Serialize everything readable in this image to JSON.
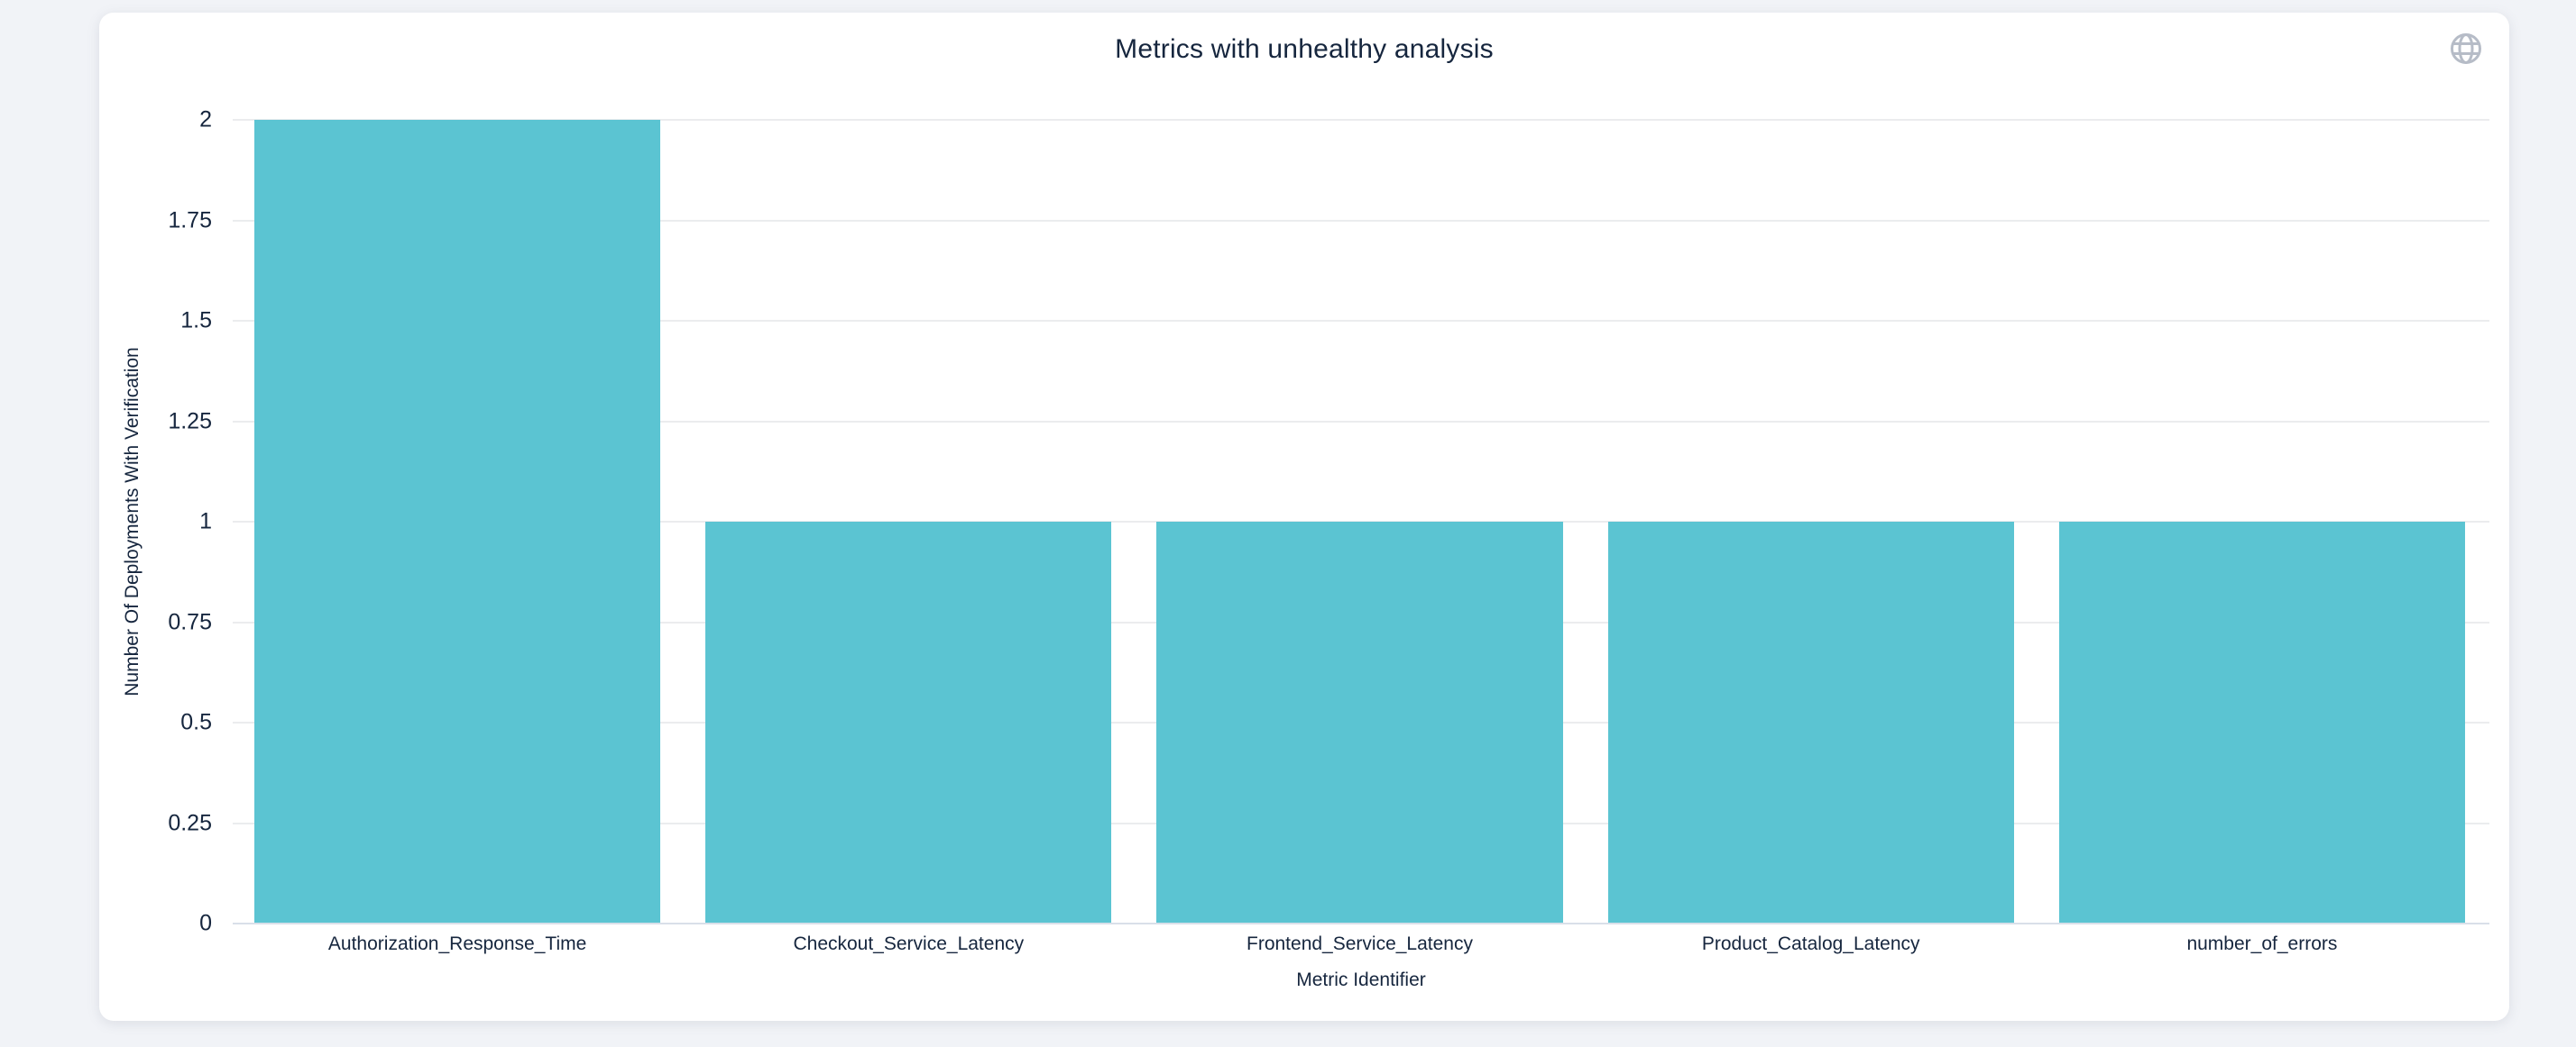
{
  "header": {
    "icon": "globe-icon"
  },
  "chart_data": {
    "type": "bar",
    "title": "Metrics with unhealthy analysis",
    "categories": [
      "Authorization_Response_Time",
      "Checkout_Service_Latency",
      "Frontend_Service_Latency",
      "Product_Catalog_Latency",
      "number_of_errors"
    ],
    "values": [
      2,
      1,
      1,
      1,
      1
    ],
    "xlabel": "Metric Identifier",
    "ylabel": "Number Of Deployments With Verification",
    "ylim": [
      0,
      2
    ],
    "yticks": [
      "0",
      "0.25",
      "0.5",
      "0.75",
      "1",
      "1.25",
      "1.5",
      "1.75",
      "2"
    ],
    "grid": true,
    "legend": "none",
    "bar_color": "#5bc4d2",
    "grid_color": "#ebecee",
    "axis_text_color": "#16263e"
  }
}
